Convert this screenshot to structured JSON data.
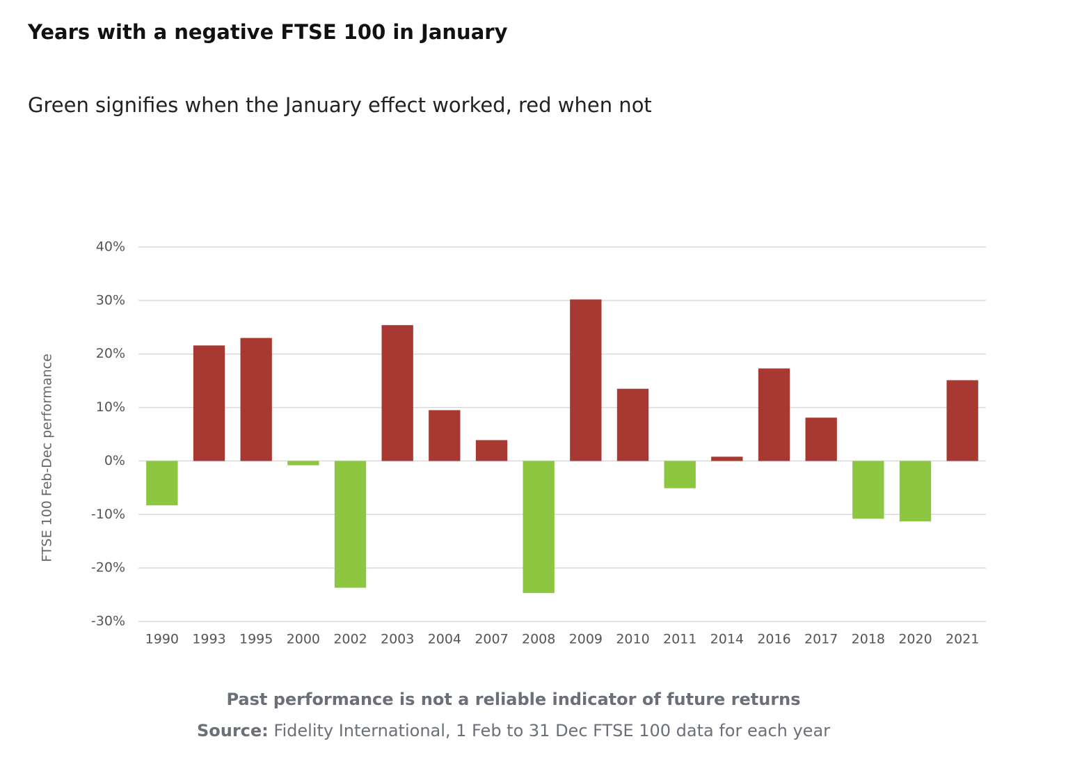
{
  "chart_data": {
    "type": "bar",
    "title": "Years with a negative FTSE 100 in January",
    "subtitle": "Green signifies when the January effect worked, red when not",
    "y_label": "FTSE 100 Feb-Dec performance",
    "categories": [
      "1990",
      "1993",
      "1995",
      "2000",
      "2002",
      "2003",
      "2004",
      "2007",
      "2008",
      "2009",
      "2010",
      "2011",
      "2014",
      "2016",
      "2017",
      "2018",
      "2020",
      "2021"
    ],
    "values": [
      -8.3,
      21.6,
      23.0,
      -0.8,
      -23.7,
      25.4,
      9.5,
      3.9,
      -24.7,
      30.2,
      13.5,
      -5.1,
      0.8,
      17.3,
      8.1,
      -10.8,
      -11.3,
      15.1
    ],
    "colors": [
      "#8dc641",
      "#a83832",
      "#a83832",
      "#8dc641",
      "#8dc641",
      "#a83832",
      "#a83832",
      "#a83832",
      "#8dc641",
      "#a83832",
      "#a83832",
      "#8dc641",
      "#a83832",
      "#a83832",
      "#a83832",
      "#8dc641",
      "#8dc641",
      "#a83832"
    ],
    "ylim": [
      -30,
      40
    ],
    "yticks": [
      {
        "value": -30,
        "label": "-30%"
      },
      {
        "value": -20,
        "label": "-20%"
      },
      {
        "value": -10,
        "label": "-10%"
      },
      {
        "value": 0,
        "label": "0%"
      },
      {
        "value": 10,
        "label": "10%"
      },
      {
        "value": 20,
        "label": "20%"
      },
      {
        "value": 30,
        "label": "30%"
      },
      {
        "value": 40,
        "label": "40%"
      }
    ],
    "grid": true
  },
  "footer": {
    "disclaimer": "Past performance is not a reliable indicator of future returns",
    "source_label": "Source:",
    "source_text": "Fidelity International, 1 Feb to 31 Dec FTSE 100 data for each year"
  }
}
